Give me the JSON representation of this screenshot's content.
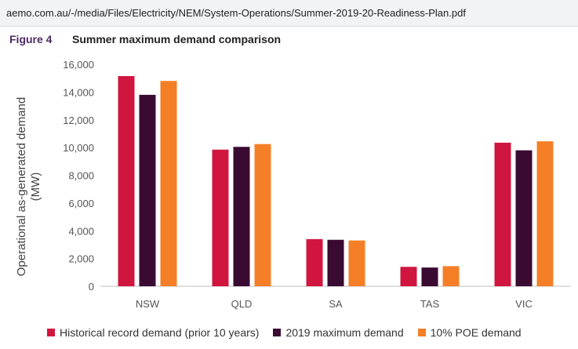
{
  "address_bar": {
    "url": "aemo.com.au/-/media/Files/Electricity/NEM/System-Operations/Summer-2019-20-Readiness-Plan.pdf"
  },
  "figure": {
    "label": "Figure 4",
    "title": "Summer maximum demand comparison"
  },
  "colors": {
    "historical": "#d0163f",
    "max2019": "#3a0b32",
    "poe10": "#f57f27"
  },
  "chart_data": {
    "type": "bar",
    "title": "Summer maximum demand comparison",
    "xlabel": "",
    "ylabel": "Operational as-generated demand (MW)",
    "ylim": [
      0,
      16000
    ],
    "yticks": [
      "0",
      "2,000",
      "4,000",
      "6,000",
      "8,000",
      "10,000",
      "12,000",
      "14,000",
      "16,000"
    ],
    "categories": [
      "NSW",
      "QLD",
      "SA",
      "TAS",
      "VIC"
    ],
    "series": [
      {
        "name": "Historical record demand (prior 10 years)",
        "values": [
          15150,
          9850,
          3400,
          1400,
          10350
        ]
      },
      {
        "name": "2019 maximum demand",
        "values": [
          13800,
          10050,
          3350,
          1350,
          9800
        ]
      },
      {
        "name": "10% POE demand",
        "values": [
          14800,
          10250,
          3300,
          1450,
          10450
        ]
      }
    ],
    "grid": false,
    "legend": "bottom"
  }
}
